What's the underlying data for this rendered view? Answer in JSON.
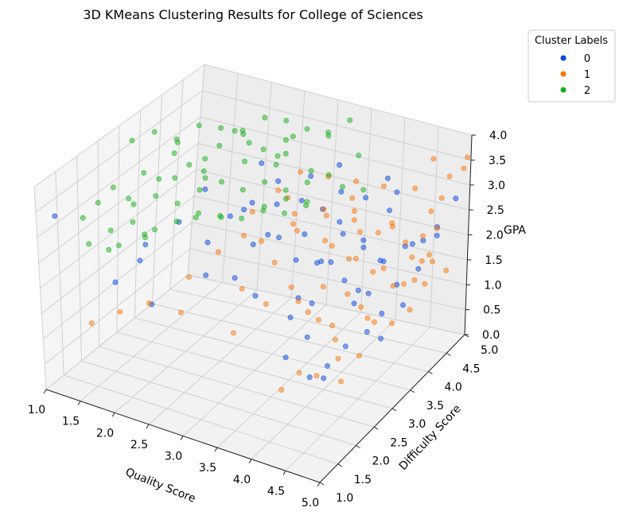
{
  "chart_data": {
    "type": "scatter",
    "projection": "3d",
    "title": "3D KMeans Clustering Results for College of Sciences",
    "xlabel": "Quality Score",
    "ylabel": "Difficulty Score",
    "zlabel": "GPA",
    "xlim": [
      1.0,
      5.0
    ],
    "ylim": [
      1.0,
      5.0
    ],
    "zlim": [
      0.0,
      4.0
    ],
    "x_ticks": [
      "1.0",
      "1.5",
      "2.0",
      "2.5",
      "3.0",
      "3.5",
      "4.0",
      "4.5",
      "5.0"
    ],
    "y_ticks": [
      "1.0",
      "1.5",
      "2.0",
      "2.5",
      "3.0",
      "3.5",
      "4.0",
      "4.5",
      "5.0"
    ],
    "z_ticks": [
      "0.0",
      "0.5",
      "1.0",
      "1.5",
      "2.0",
      "2.5",
      "3.0",
      "3.5",
      "4.0"
    ],
    "grid": true,
    "legend": {
      "title": "Cluster Labels",
      "placement": "upper right outside"
    },
    "series": [
      {
        "name": "0",
        "color": "#0343df",
        "points": [
          [
            1.2,
            1.1,
            3.4
          ],
          [
            1.9,
            1.3,
            2.2
          ],
          [
            2.3,
            1.5,
            1.8
          ],
          [
            2.0,
            1.9,
            2.6
          ],
          [
            1.7,
            2.3,
            2.0
          ],
          [
            2.8,
            2.0,
            2.2
          ],
          [
            2.5,
            2.6,
            2.4
          ],
          [
            3.2,
            2.5,
            2.6
          ],
          [
            3.4,
            2.2,
            1.9
          ],
          [
            3.8,
            2.3,
            0.9
          ],
          [
            4.0,
            2.5,
            1.2
          ],
          [
            4.1,
            2.4,
            0.6
          ],
          [
            4.2,
            2.6,
            0.5
          ],
          [
            4.3,
            2.5,
            0.8
          ],
          [
            3.7,
            2.6,
            1.4
          ],
          [
            3.9,
            2.8,
            1.6
          ],
          [
            3.6,
            3.0,
            1.5
          ],
          [
            3.5,
            3.1,
            2.1
          ],
          [
            3.3,
            3.0,
            2.5
          ],
          [
            3.7,
            3.3,
            2.0
          ],
          [
            4.0,
            3.1,
            2.2
          ],
          [
            4.1,
            3.3,
            1.8
          ],
          [
            4.3,
            3.2,
            1.5
          ],
          [
            4.4,
            3.4,
            1.6
          ],
          [
            4.6,
            3.4,
            1.3
          ],
          [
            4.5,
            3.6,
            2.1
          ],
          [
            4.2,
            3.6,
            2.4
          ],
          [
            3.9,
            3.5,
            2.7
          ],
          [
            3.6,
            3.6,
            2.8
          ],
          [
            3.4,
            3.4,
            3.0
          ],
          [
            3.1,
            3.3,
            2.9
          ],
          [
            3.0,
            3.5,
            3.2
          ],
          [
            2.8,
            3.2,
            2.9
          ],
          [
            2.6,
            3.0,
            2.7
          ],
          [
            3.8,
            3.8,
            2.3
          ],
          [
            4.0,
            4.0,
            2.0
          ],
          [
            4.3,
            3.9,
            1.9
          ],
          [
            4.6,
            4.0,
            2.2
          ],
          [
            4.7,
            4.2,
            1.7
          ],
          [
            4.5,
            4.4,
            2.0
          ],
          [
            4.2,
            4.3,
            2.6
          ],
          [
            4.8,
            4.5,
            2.2
          ],
          [
            3.9,
            4.2,
            2.8
          ],
          [
            3.7,
            3.9,
            3.0
          ],
          [
            4.4,
            4.1,
            3.1
          ],
          [
            4.1,
            3.7,
            1.4
          ],
          [
            3.5,
            3.8,
            1.7
          ],
          [
            3.3,
            3.7,
            2.2
          ],
          [
            4.6,
            3.8,
            1.6
          ],
          [
            4.9,
            4.3,
            2.5
          ],
          [
            2.4,
            2.7,
            3.3
          ],
          [
            2.2,
            2.4,
            2.8
          ],
          [
            2.9,
            2.8,
            3.0
          ],
          [
            3.3,
            2.7,
            2.7
          ],
          [
            3.0,
            2.4,
            2.0
          ],
          [
            4.4,
            2.8,
            1.0
          ],
          [
            4.6,
            3.0,
            1.2
          ],
          [
            4.7,
            3.2,
            1.0
          ],
          [
            4.8,
            3.6,
            1.4
          ],
          [
            4.5,
            4.7,
            1.9
          ],
          [
            2.7,
            3.6,
            3.4
          ],
          [
            3.2,
            4.0,
            3.1
          ],
          [
            3.5,
            4.2,
            3.3
          ],
          [
            4.0,
            4.6,
            3.0
          ],
          [
            4.9,
            4.8,
            2.8
          ]
        ]
      },
      {
        "name": "1",
        "color": "#f97306",
        "points": [
          [
            1.6,
            1.2,
            1.4
          ],
          [
            1.9,
            1.4,
            1.6
          ],
          [
            2.5,
            1.9,
            1.5
          ],
          [
            3.2,
            2.0,
            1.3
          ],
          [
            3.8,
            2.2,
            0.4
          ],
          [
            4.0,
            2.3,
            0.7
          ],
          [
            4.5,
            2.5,
            0.6
          ],
          [
            4.4,
            2.6,
            0.9
          ],
          [
            4.2,
            2.9,
            1.0
          ],
          [
            3.9,
            3.0,
            1.2
          ],
          [
            3.5,
            3.2,
            1.3
          ],
          [
            3.8,
            3.3,
            1.6
          ],
          [
            4.1,
            3.4,
            1.5
          ],
          [
            4.5,
            3.2,
            1.3
          ],
          [
            4.7,
            3.5,
            1.1
          ],
          [
            4.8,
            3.8,
            1.2
          ],
          [
            4.6,
            4.0,
            1.5
          ],
          [
            4.3,
            3.7,
            1.8
          ],
          [
            4.0,
            3.6,
            2.0
          ],
          [
            3.7,
            3.5,
            2.3
          ],
          [
            3.4,
            3.3,
            2.5
          ],
          [
            3.2,
            3.6,
            2.6
          ],
          [
            3.5,
            3.9,
            2.5
          ],
          [
            3.8,
            4.1,
            2.4
          ],
          [
            4.1,
            4.2,
            2.2
          ],
          [
            4.4,
            4.4,
            2.0
          ],
          [
            4.7,
            4.5,
            1.8
          ],
          [
            4.9,
            4.6,
            1.5
          ],
          [
            4.9,
            4.2,
            1.9
          ],
          [
            4.6,
            4.7,
            2.5
          ],
          [
            4.3,
            4.8,
            2.8
          ],
          [
            4.0,
            4.5,
            2.9
          ],
          [
            3.7,
            4.3,
            3.0
          ],
          [
            3.4,
            4.1,
            3.1
          ],
          [
            3.1,
            3.9,
            3.2
          ],
          [
            2.9,
            3.7,
            2.9
          ],
          [
            2.7,
            3.4,
            2.6
          ],
          [
            3.0,
            3.1,
            2.3
          ],
          [
            3.3,
            2.9,
            2.1
          ],
          [
            3.6,
            2.8,
            1.8
          ],
          [
            3.9,
            2.7,
            1.5
          ],
          [
            4.2,
            2.8,
            1.3
          ],
          [
            4.5,
            3.0,
            1.6
          ],
          [
            4.8,
            3.3,
            1.9
          ],
          [
            5.0,
            3.7,
            2.2
          ],
          [
            5.0,
            4.1,
            2.6
          ],
          [
            4.8,
            4.8,
            3.2
          ],
          [
            4.5,
            4.9,
            3.4
          ],
          [
            5.0,
            4.9,
            3.6
          ],
          [
            4.9,
            5.0,
            3.3
          ],
          [
            4.6,
            4.3,
            1.4
          ],
          [
            4.3,
            4.0,
            1.7
          ],
          [
            4.0,
            3.8,
            1.9
          ],
          [
            3.7,
            3.7,
            2.1
          ],
          [
            4.2,
            3.5,
            2.6
          ],
          [
            4.5,
            3.8,
            2.7
          ],
          [
            4.8,
            4.1,
            2.4
          ],
          [
            3.5,
            3.0,
            2.8
          ],
          [
            3.2,
            3.4,
            3.0
          ],
          [
            3.9,
            3.9,
            2.7
          ],
          [
            4.1,
            4.6,
            2.1
          ],
          [
            4.4,
            4.6,
            1.6
          ],
          [
            4.7,
            4.4,
            1.3
          ],
          [
            3.6,
            4.4,
            2.6
          ],
          [
            3.3,
            4.2,
            2.4
          ],
          [
            2.8,
            3.0,
            2.4
          ],
          [
            2.6,
            2.7,
            2.2
          ],
          [
            2.4,
            2.3,
            1.9
          ],
          [
            2.1,
            1.8,
            1.6
          ],
          [
            4.3,
            2.2,
            0.8
          ],
          [
            4.6,
            2.8,
            0.9
          ],
          [
            4.7,
            3.0,
            1.4
          ],
          [
            3.0,
            2.6,
            1.7
          ],
          [
            3.4,
            2.5,
            1.6
          ],
          [
            4.9,
            4.4,
            3.0
          ]
        ]
      },
      {
        "name": "2",
        "color": "#15b01a",
        "points": [
          [
            1.3,
            1.6,
            3.1
          ],
          [
            1.4,
            1.8,
            3.3
          ],
          [
            1.5,
            2.0,
            3.5
          ],
          [
            1.6,
            2.2,
            3.2
          ],
          [
            1.7,
            2.4,
            3.6
          ],
          [
            1.8,
            2.6,
            3.4
          ],
          [
            1.9,
            2.8,
            3.8
          ],
          [
            2.0,
            3.0,
            3.5
          ],
          [
            2.1,
            3.2,
            3.3
          ],
          [
            2.2,
            3.4,
            3.7
          ],
          [
            2.3,
            3.6,
            3.9
          ],
          [
            2.4,
            3.8,
            3.6
          ],
          [
            2.5,
            4.0,
            3.4
          ],
          [
            2.6,
            4.2,
            3.2
          ],
          [
            2.7,
            4.4,
            3.5
          ],
          [
            1.5,
            2.5,
            2.9
          ],
          [
            1.7,
            2.7,
            3.0
          ],
          [
            1.9,
            2.9,
            2.8
          ],
          [
            2.1,
            3.1,
            3.0
          ],
          [
            2.3,
            3.3,
            3.1
          ],
          [
            2.5,
            3.5,
            2.9
          ],
          [
            2.7,
            3.7,
            3.0
          ],
          [
            2.9,
            3.9,
            2.8
          ],
          [
            3.1,
            4.1,
            2.9
          ],
          [
            3.3,
            4.3,
            3.0
          ],
          [
            1.4,
            2.1,
            2.6
          ],
          [
            1.6,
            2.3,
            2.7
          ],
          [
            1.8,
            2.5,
            2.5
          ],
          [
            2.0,
            2.7,
            2.6
          ],
          [
            2.2,
            2.9,
            2.7
          ],
          [
            2.4,
            3.1,
            2.6
          ],
          [
            2.6,
            3.3,
            2.5
          ],
          [
            2.8,
            3.5,
            2.6
          ],
          [
            3.0,
            3.7,
            2.5
          ],
          [
            3.2,
            3.9,
            2.6
          ],
          [
            1.3,
            2.8,
            3.9
          ],
          [
            1.5,
            3.0,
            4.0
          ],
          [
            1.7,
            3.2,
            3.8
          ],
          [
            1.9,
            3.4,
            4.0
          ],
          [
            2.1,
            3.6,
            3.9
          ],
          [
            2.3,
            3.8,
            3.8
          ],
          [
            2.5,
            4.0,
            4.0
          ],
          [
            2.7,
            4.2,
            3.9
          ],
          [
            2.9,
            4.4,
            3.7
          ],
          [
            3.1,
            4.6,
            3.6
          ],
          [
            1.2,
            1.9,
            2.4
          ],
          [
            1.4,
            2.3,
            2.2
          ],
          [
            1.6,
            2.6,
            2.3
          ],
          [
            2.0,
            3.2,
            2.4
          ],
          [
            2.2,
            3.5,
            2.3
          ],
          [
            2.6,
            3.9,
            2.4
          ],
          [
            2.8,
            4.1,
            2.5
          ],
          [
            3.0,
            4.3,
            2.4
          ],
          [
            3.4,
            4.5,
            2.7
          ],
          [
            3.6,
            4.7,
            2.6
          ],
          [
            1.8,
            3.0,
            3.2
          ],
          [
            2.0,
            3.4,
            3.4
          ],
          [
            2.4,
            3.7,
            3.3
          ],
          [
            2.8,
            3.8,
            3.3
          ],
          [
            3.2,
            4.0,
            3.2
          ],
          [
            1.6,
            3.4,
            3.6
          ],
          [
            2.2,
            4.0,
            3.6
          ],
          [
            2.6,
            4.4,
            3.4
          ],
          [
            3.0,
            4.8,
            3.4
          ],
          [
            3.4,
            4.9,
            3.1
          ],
          [
            1.2,
            2.4,
            2.0
          ],
          [
            1.5,
            2.8,
            2.1
          ],
          [
            1.9,
            3.6,
            2.9
          ],
          [
            2.5,
            4.6,
            3.0
          ],
          [
            3.3,
            4.8,
            3.8
          ]
        ]
      }
    ]
  }
}
